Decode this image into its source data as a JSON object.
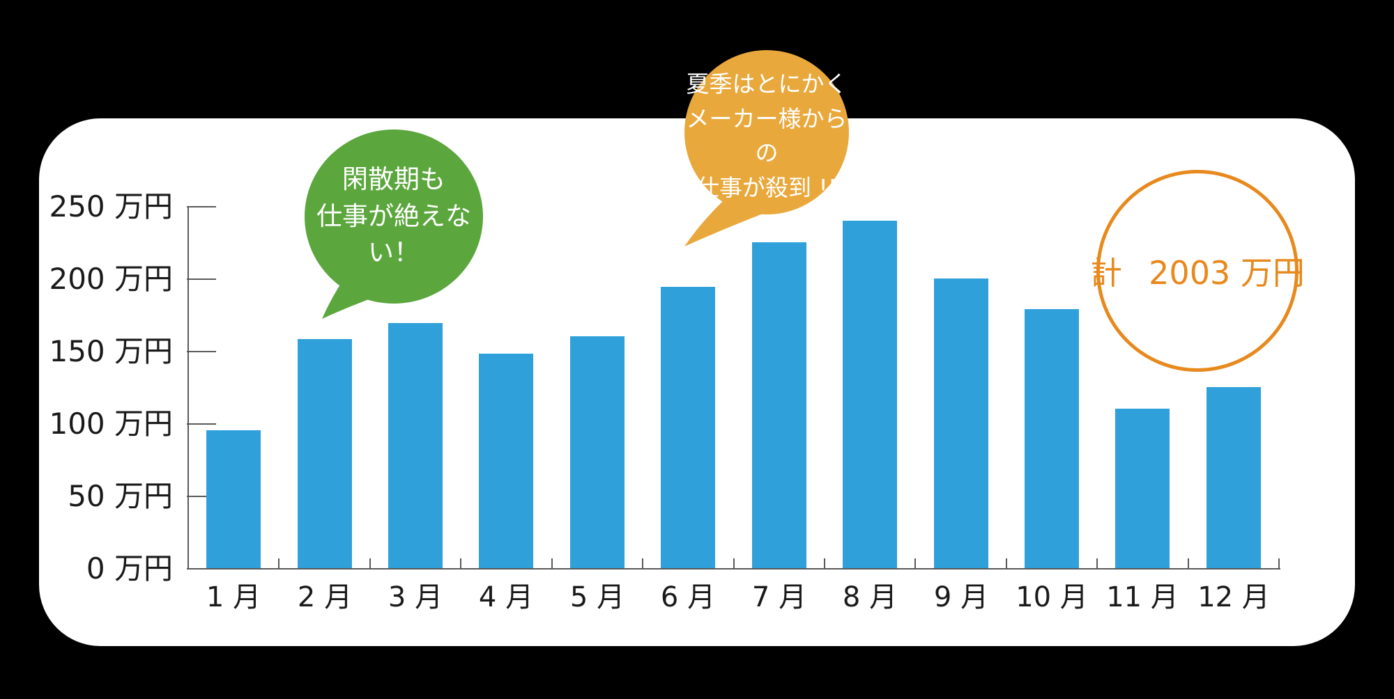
{
  "page": {
    "background_color": "#000000",
    "card_color": "#FFFFFF"
  },
  "chart_data": {
    "type": "bar",
    "unit": "万円",
    "categories": [
      "1 月",
      "2 月",
      "3 月",
      "4 月",
      "5 月",
      "6 月",
      "7 月",
      "8 月",
      "9 月",
      "10 月",
      "11 月",
      "12 月"
    ],
    "values": [
      95,
      158,
      169,
      148,
      160,
      194,
      225,
      240,
      200,
      179,
      110,
      125
    ],
    "ylim": [
      0,
      250
    ],
    "y_ticks": [
      {
        "value": 0,
        "label": "0 万円"
      },
      {
        "value": 50,
        "label": "50 万円"
      },
      {
        "value": 100,
        "label": "100 万円"
      },
      {
        "value": 150,
        "label": "150 万円"
      },
      {
        "value": 200,
        "label": "200 万円"
      },
      {
        "value": 250,
        "label": "250 万円"
      }
    ],
    "grid": "off",
    "legend": "none",
    "bar_color": "#2FA0DA",
    "axis_color": "#595959",
    "label_color": "#1A1A1A",
    "annotations": {
      "green_bubble": {
        "lines": [
          "閑散期も",
          "仕事が絶えない！"
        ],
        "fill_color": "#5BA63D",
        "text_color": "#FFFFFF"
      },
      "orange_bubble": {
        "lines": [
          "夏季はとにかく",
          "メーカー様からの",
          "仕事が殺到 !!"
        ],
        "fill_color": "#E9A83C",
        "text_color": "#FFFFFF"
      },
      "total_circle": {
        "prefix": "計",
        "value": "2003 万円",
        "color": "#E7891D"
      }
    }
  }
}
